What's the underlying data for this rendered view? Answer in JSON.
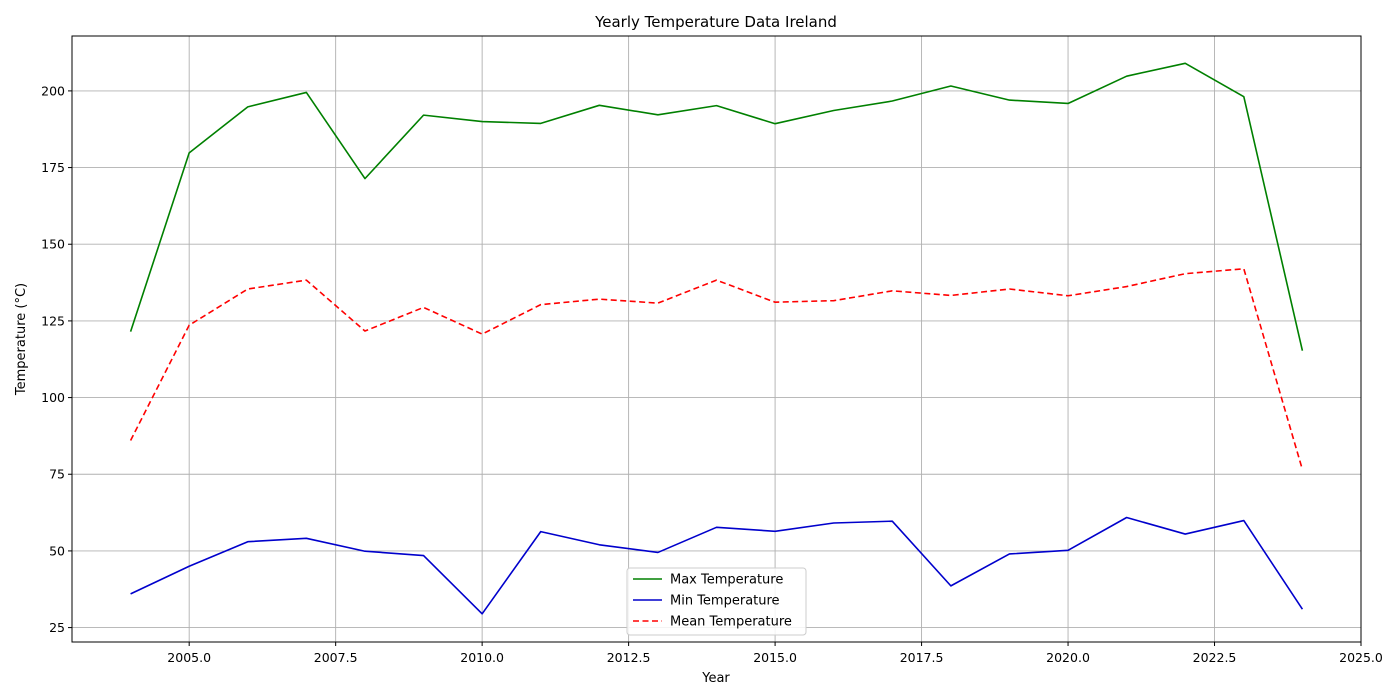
{
  "chart_data": {
    "type": "line",
    "title": "Yearly Temperature Data Ireland",
    "xlabel": "Year",
    "ylabel": "Temperature (°C)",
    "xlim": [
      2003.0,
      2025.0
    ],
    "ylim": [
      20.3,
      217.9
    ],
    "xticks": [
      2005.0,
      2007.5,
      2010.0,
      2012.5,
      2015.0,
      2017.5,
      2020.0,
      2022.5,
      2025.0
    ],
    "xtick_labels": [
      "2005.0",
      "2007.5",
      "2010.0",
      "2012.5",
      "2015.0",
      "2017.5",
      "2020.0",
      "2022.5",
      "2025.0"
    ],
    "yticks": [
      25,
      50,
      75,
      100,
      125,
      150,
      175,
      200
    ],
    "ytick_labels": [
      "25",
      "50",
      "75",
      "100",
      "125",
      "150",
      "175",
      "200"
    ],
    "grid": true,
    "legend_position": "lower-center",
    "x": [
      2004,
      2005,
      2006,
      2007,
      2008,
      2009,
      2010,
      2011,
      2012,
      2013,
      2014,
      2015,
      2016,
      2017,
      2018,
      2019,
      2020,
      2021,
      2022,
      2023,
      2024
    ],
    "series": [
      {
        "name": "Max Temperature",
        "color": "#008000",
        "style": "solid",
        "values": [
          121.5,
          179.8,
          194.8,
          199.5,
          171.4,
          192.1,
          190.0,
          189.4,
          195.3,
          192.2,
          195.2,
          189.3,
          193.6,
          196.7,
          201.6,
          197.0,
          195.9,
          204.8,
          209.0,
          198.1,
          115.3
        ]
      },
      {
        "name": "Min Temperature",
        "color": "#0000cc",
        "style": "solid",
        "values": [
          36.0,
          45.0,
          53.0,
          54.1,
          49.9,
          48.5,
          29.5,
          56.3,
          52.0,
          49.5,
          57.7,
          56.4,
          59.1,
          59.7,
          38.6,
          49.0,
          50.2,
          60.9,
          55.5,
          59.9,
          31.0
        ]
      },
      {
        "name": "Mean Temperature",
        "color": "#ff0000",
        "style": "dashed",
        "values": [
          86.0,
          123.6,
          135.4,
          138.3,
          121.7,
          129.4,
          120.7,
          130.3,
          132.1,
          130.8,
          138.3,
          131.1,
          131.6,
          134.8,
          133.3,
          135.4,
          133.2,
          136.2,
          140.4,
          142.0,
          76.5
        ]
      }
    ]
  }
}
